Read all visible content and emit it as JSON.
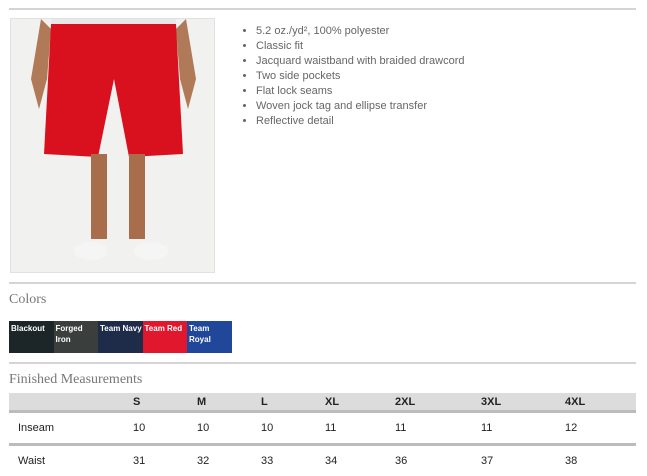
{
  "features": [
    "5.2 oz./yd², 100% polyester",
    "Classic fit",
    "Jacquard waistband with braided drawcord",
    "Two side pockets",
    "Flat lock seams",
    "Woven jock tag and ellipse transfer",
    "Reflective detail"
  ],
  "colors_heading": "Colors",
  "colors": [
    {
      "name": "Blackout",
      "hex": "#1c2628"
    },
    {
      "name": "Forged Iron",
      "hex": "#3a3f3e"
    },
    {
      "name": "Team Navy",
      "hex": "#1e2c4a"
    },
    {
      "name": "Team Red",
      "hex": "#e0172d"
    },
    {
      "name": "Team Royal",
      "hex": "#21479a"
    }
  ],
  "measurements_heading": "Finished Measurements",
  "table": {
    "headers": [
      "",
      "S",
      "M",
      "L",
      "XL",
      "2XL",
      "3XL",
      "4XL"
    ],
    "rows": [
      [
        "Inseam",
        "10",
        "10",
        "10",
        "11",
        "11",
        "11",
        "12"
      ],
      [
        "Waist",
        "31",
        "32",
        "33",
        "34",
        "36",
        "37",
        "38"
      ]
    ]
  }
}
